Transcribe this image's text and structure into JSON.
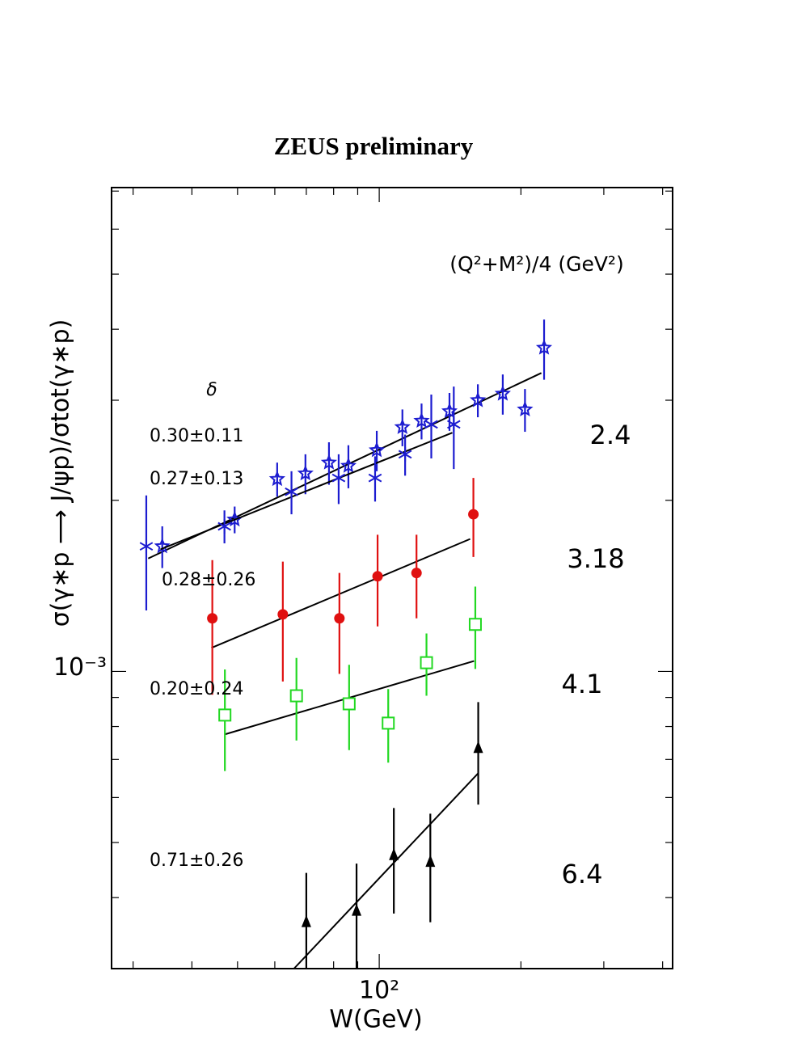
{
  "chart_data": {
    "type": "scatter",
    "title": "ZEUS preliminary",
    "x_label": "W(GeV)",
    "y_label": "σ(γ∗p ⟶ J/ψp)/σtot(γ∗p)",
    "legend_title": "(Q²+M²)/4 (GeV²)",
    "delta_title": "δ",
    "log_x": true,
    "log_y": true,
    "xlim": [
      27,
      420
    ],
    "ylim": [
      0.0003,
      0.0071
    ],
    "xticks": [
      {
        "value": 100,
        "label": "10²"
      }
    ],
    "yticks": [
      {
        "value": 0.001,
        "label": "10⁻³"
      }
    ],
    "x_minor_ticks": [
      30,
      40,
      50,
      60,
      70,
      80,
      90,
      200,
      300,
      400
    ],
    "y_minor_ticks": [
      0.0004,
      0.0005,
      0.0006,
      0.0007,
      0.0008,
      0.0009,
      0.002,
      0.003,
      0.004,
      0.005,
      0.006,
      0.007
    ],
    "q_labels": [
      "2.4",
      "3.18",
      "4.1",
      "6.4"
    ],
    "series": [
      {
        "delta": "0.30±0.11",
        "marker": "star",
        "color": "#1c1cd0",
        "x": [
          34.6,
          49.3,
          60.7,
          69.7,
          78.2,
          86.0,
          98.8,
          112,
          123,
          141,
          162,
          183,
          204,
          224
        ],
        "values": [
          0.00166,
          0.00185,
          0.00218,
          0.00223,
          0.00233,
          0.0023,
          0.00245,
          0.00269,
          0.00276,
          0.00287,
          0.003,
          0.00308,
          0.00289,
          0.00371
        ],
        "errors": [
          0.00014,
          0.0001,
          0.00015,
          0.00018,
          0.0002,
          0.0002,
          0.0002,
          0.0002,
          0.0002,
          0.00022,
          0.0002,
          0.00025,
          0.00025,
          0.00045
        ],
        "fit": {
          "x": [
            32.3,
            221
          ],
          "values": [
            0.00158,
            0.00335
          ]
        }
      },
      {
        "delta": "0.27±0.13",
        "marker": "asterisk",
        "color": "#1c1cd0",
        "x": [
          32.0,
          46.9,
          65.1,
          82.0,
          98.0,
          113.5,
          129,
          144
        ],
        "values": [
          0.00166,
          0.0018,
          0.00207,
          0.00219,
          0.00219,
          0.00241,
          0.00272,
          0.00272
        ],
        "errors": [
          0.00038,
          0.00012,
          0.00018,
          0.00022,
          0.0002,
          0.0002,
          0.00035,
          0.00045
        ],
        "fit": {
          "x": [
            34.3,
            143
          ],
          "values": [
            0.00164,
            0.00263
          ]
        }
      },
      {
        "delta": "0.28±0.26",
        "marker": "circle",
        "color": "#e01010",
        "x": [
          44.2,
          62.4,
          82.3,
          99.2,
          120,
          158.5
        ],
        "values": [
          0.00124,
          0.00126,
          0.00124,
          0.00147,
          0.00149,
          0.00189
        ],
        "errors": [
          0.00033,
          0.0003,
          0.00025,
          0.00027,
          0.00025,
          0.0003
        ],
        "fit": {
          "x": [
            44,
            156
          ],
          "values": [
            0.0011,
            0.00171
          ]
        }
      },
      {
        "delta": "0.20±0.24",
        "marker": "square",
        "color": "#22d822",
        "x": [
          47.0,
          66.7,
          86.3,
          104.5,
          126,
          160
        ],
        "values": [
          0.000838,
          0.000906,
          0.000877,
          0.000811,
          0.001036,
          0.00121
        ],
        "errors": [
          0.00017,
          0.00015,
          0.00015,
          0.00012,
          0.00013,
          0.0002
        ],
        "fit": {
          "x": [
            47,
            159
          ],
          "values": [
            0.000775,
            0.001043
          ]
        }
      },
      {
        "delta": "0.71±0.26",
        "marker": "triangle",
        "color": "#000000",
        "x": [
          70.0,
          89.5,
          107.4,
          128.4,
          162.3
        ],
        "values": [
          0.000362,
          0.000379,
          0.000475,
          0.000462,
          0.000733
        ],
        "errors": [
          8e-05,
          8e-05,
          0.0001,
          0.0001,
          0.00015
        ],
        "fit": {
          "x": [
            65.9,
            162.3
          ],
          "values": [
            0.0003,
            0.000662
          ]
        }
      }
    ]
  }
}
